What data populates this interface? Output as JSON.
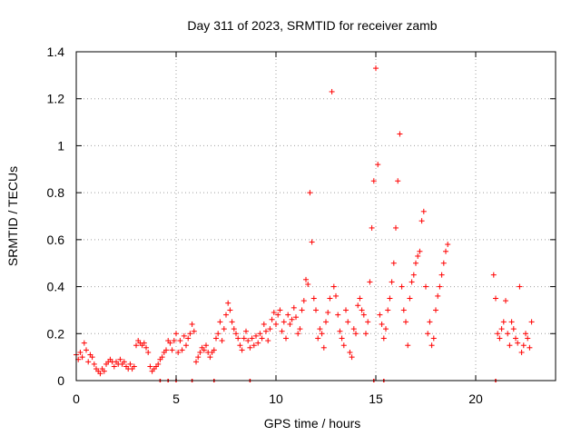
{
  "chart_data": {
    "type": "scatter",
    "title": "Day 311 of 2023, SRMTID for receiver zamb",
    "xlabel": "GPS time / hours",
    "ylabel": "SRMTID / TECUs",
    "xlim": [
      0,
      24
    ],
    "ylim": [
      0,
      1.4
    ],
    "xticks": [
      0,
      5,
      10,
      15,
      20
    ],
    "yticks": [
      0,
      0.2,
      0.4,
      0.6,
      0.8,
      1,
      1.2,
      1.4
    ],
    "xtick_labels": [
      "0",
      "5",
      "10",
      "15",
      "20"
    ],
    "ytick_labels": [
      "0",
      "0.2",
      "0.4",
      "0.6",
      "0.8",
      "1",
      "1.2",
      "1.4"
    ],
    "grid": true,
    "marker": "+",
    "series": [
      {
        "name": "SRMTID",
        "color": "#ff0000",
        "x": [
          0.0,
          0.1,
          0.2,
          0.3,
          0.4,
          0.5,
          0.6,
          0.7,
          0.8,
          0.9,
          1.0,
          1.1,
          1.2,
          1.3,
          1.4,
          1.5,
          1.6,
          1.7,
          1.8,
          1.9,
          2.0,
          2.1,
          2.2,
          2.3,
          2.4,
          2.5,
          2.6,
          2.7,
          2.8,
          2.9,
          3.0,
          3.1,
          3.2,
          3.3,
          3.4,
          3.5,
          3.6,
          3.7,
          3.8,
          3.9,
          4.0,
          4.1,
          4.2,
          4.3,
          4.4,
          4.5,
          4.6,
          4.7,
          4.8,
          4.9,
          5.0,
          5.1,
          5.2,
          5.3,
          5.4,
          5.5,
          5.6,
          5.7,
          5.8,
          5.9,
          6.0,
          6.1,
          6.2,
          6.3,
          6.4,
          6.5,
          6.6,
          6.7,
          6.8,
          6.9,
          7.0,
          7.1,
          7.2,
          7.3,
          7.4,
          7.5,
          7.6,
          7.7,
          7.8,
          7.9,
          8.0,
          8.1,
          8.2,
          8.3,
          8.4,
          8.5,
          8.6,
          8.7,
          8.8,
          8.9,
          9.0,
          9.1,
          9.2,
          9.3,
          9.4,
          9.5,
          9.6,
          9.7,
          9.8,
          9.9,
          10.0,
          10.1,
          10.2,
          10.3,
          10.4,
          10.5,
          10.6,
          10.7,
          10.8,
          10.9,
          11.0,
          11.1,
          11.2,
          11.3,
          11.4,
          11.5,
          11.6,
          11.7,
          11.8,
          11.9,
          12.0,
          12.1,
          12.2,
          12.3,
          12.4,
          12.5,
          12.6,
          12.7,
          12.8,
          12.9,
          13.0,
          13.1,
          13.2,
          13.3,
          13.4,
          13.5,
          13.6,
          13.7,
          13.8,
          13.9,
          14.0,
          14.1,
          14.2,
          14.3,
          14.4,
          14.5,
          14.6,
          14.7,
          14.8,
          14.9,
          15.0,
          15.1,
          15.2,
          15.3,
          15.4,
          15.5,
          15.6,
          15.7,
          15.8,
          15.9,
          16.0,
          16.1,
          16.2,
          16.3,
          16.4,
          16.5,
          16.6,
          16.7,
          16.8,
          16.9,
          17.0,
          17.1,
          17.2,
          17.3,
          17.4,
          17.5,
          17.6,
          17.7,
          17.8,
          17.9,
          18.0,
          18.1,
          18.2,
          18.3,
          18.4,
          18.5,
          18.6,
          20.9,
          21.0,
          21.1,
          21.2,
          21.3,
          21.4,
          21.5,
          21.6,
          21.7,
          21.8,
          21.9,
          22.0,
          22.1,
          22.2,
          22.3,
          22.4,
          22.5,
          22.6,
          22.7,
          22.8
        ],
        "y": [
          0.11,
          0.09,
          0.12,
          0.1,
          0.16,
          0.13,
          0.08,
          0.11,
          0.1,
          0.07,
          0.05,
          0.04,
          0.03,
          0.05,
          0.04,
          0.07,
          0.08,
          0.09,
          0.08,
          0.06,
          0.08,
          0.07,
          0.09,
          0.07,
          0.08,
          0.06,
          0.05,
          0.07,
          0.05,
          0.06,
          0.15,
          0.17,
          0.16,
          0.15,
          0.16,
          0.14,
          0.12,
          0.06,
          0.04,
          0.05,
          0.06,
          0.07,
          0.09,
          0.1,
          0.12,
          0.13,
          0.17,
          0.16,
          0.13,
          0.17,
          0.2,
          0.12,
          0.17,
          0.13,
          0.19,
          0.15,
          0.18,
          0.2,
          0.24,
          0.21,
          0.08,
          0.1,
          0.12,
          0.14,
          0.13,
          0.15,
          0.12,
          0.1,
          0.12,
          0.13,
          0.18,
          0.2,
          0.25,
          0.17,
          0.22,
          0.28,
          0.33,
          0.3,
          0.25,
          0.22,
          0.2,
          0.18,
          0.15,
          0.13,
          0.18,
          0.21,
          0.17,
          0.14,
          0.18,
          0.15,
          0.19,
          0.16,
          0.2,
          0.18,
          0.24,
          0.21,
          0.17,
          0.22,
          0.26,
          0.29,
          0.24,
          0.28,
          0.3,
          0.21,
          0.25,
          0.18,
          0.28,
          0.24,
          0.26,
          0.31,
          0.27,
          0.2,
          0.22,
          0.3,
          0.34,
          0.43,
          0.41,
          0.8,
          0.59,
          0.35,
          0.3,
          0.18,
          0.22,
          0.2,
          0.14,
          0.25,
          0.29,
          0.35,
          1.23,
          0.4,
          0.36,
          0.28,
          0.21,
          0.18,
          0.15,
          0.3,
          0.25,
          0.12,
          0.1,
          0.22,
          0.2,
          0.32,
          0.35,
          0.3,
          0.28,
          0.2,
          0.25,
          0.42,
          0.65,
          0.85,
          1.33,
          0.92,
          0.28,
          0.24,
          0.18,
          0.22,
          0.3,
          0.35,
          0.42,
          0.5,
          0.65,
          0.85,
          1.05,
          0.4,
          0.3,
          0.25,
          0.15,
          0.35,
          0.42,
          0.45,
          0.5,
          0.53,
          0.55,
          0.68,
          0.72,
          0.4,
          0.2,
          0.25,
          0.15,
          0.18,
          0.3,
          0.36,
          0.4,
          0.45,
          0.5,
          0.55,
          0.58,
          0.45,
          0.35,
          0.2,
          0.18,
          0.22,
          0.25,
          0.34,
          0.2,
          0.15,
          0.25,
          0.22,
          0.18,
          0.16,
          0.4,
          0.12,
          0.15,
          0.2,
          0.18,
          0.14,
          0.25
        ]
      }
    ],
    "axis_markers_x": [
      4.2,
      4.6,
      5.0,
      5.8,
      6.9,
      8.7,
      14.9,
      15.4,
      21.0
    ]
  }
}
